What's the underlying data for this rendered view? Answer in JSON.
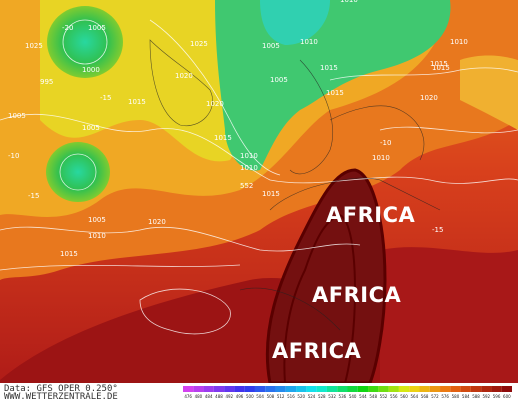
{
  "regions": [
    "AFRICA",
    "AFRICA",
    "AFRICA"
  ],
  "isobar_labels": [
    "1005",
    "1000",
    "995",
    "1005",
    "1025",
    "1020",
    "1015",
    "1005",
    "1020",
    "1015",
    "1005",
    "1010",
    "1015",
    "1005",
    "1010",
    "-15",
    "-10",
    "-15",
    "-20",
    "1010",
    "1015",
    "1020",
    "1010",
    "1015",
    "1005",
    "1010",
    "1015",
    "1020",
    "1025",
    "-10",
    "-15",
    "1010",
    "1015",
    "552",
    "1010",
    "1015"
  ],
  "footer": {
    "source": "Data: GFS OPER 0.250°",
    "site": "WWW.WETTERZENTRALE.DE"
  },
  "legend": {
    "values": [
      476,
      480,
      484,
      488,
      492,
      496,
      500,
      504,
      508,
      512,
      516,
      520,
      524,
      528,
      532,
      536,
      540,
      544,
      548,
      552,
      556,
      560,
      564,
      568,
      572,
      576,
      580,
      584,
      588,
      592,
      596,
      600
    ]
  }
}
